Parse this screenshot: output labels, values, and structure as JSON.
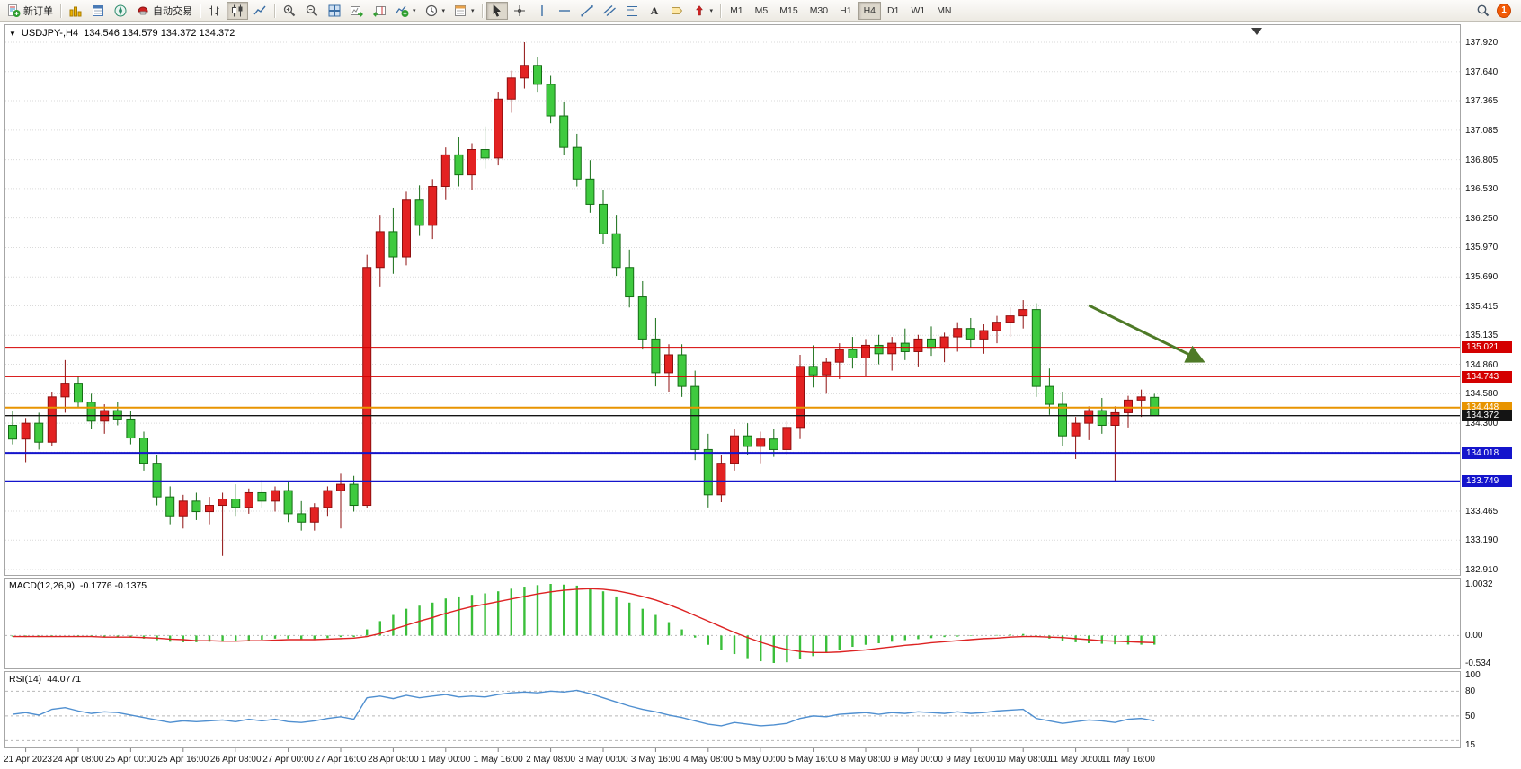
{
  "toolbar": {
    "new_order_label": "新订单",
    "autotrading_label": "自动交易",
    "timeframes": [
      "M1",
      "M5",
      "M15",
      "M30",
      "H1",
      "H4",
      "D1",
      "W1",
      "MN"
    ],
    "active_timeframe": "H4",
    "notification_count": "1"
  },
  "chart": {
    "collapse_arrow": "▼",
    "title": "USDJPY-,H4",
    "ohlc": "134.546 134.579 134.372 134.372"
  },
  "chart_data": {
    "type": "candlestick",
    "symbol": "USDJPY-",
    "timeframe": "H4",
    "price_axis_labels": [
      "137.920",
      "137.640",
      "137.365",
      "137.085",
      "136.805",
      "136.530",
      "136.250",
      "135.970",
      "135.690",
      "135.415",
      "135.135",
      "134.860",
      "134.580",
      "134.300",
      "134.025",
      "133.745",
      "133.465",
      "133.190",
      "132.910"
    ],
    "time_axis_labels": [
      "21 Apr 2023",
      "24 Apr 08:00",
      "25 Apr 00:00",
      "25 Apr 16:00",
      "26 Apr 08:00",
      "27 Apr 00:00",
      "27 Apr 16:00",
      "28 Apr 08:00",
      "1 May 00:00",
      "1 May 16:00",
      "2 May 08:00",
      "3 May 00:00",
      "3 May 16:00",
      "4 May 08:00",
      "5 May 00:00",
      "5 May 16:00",
      "8 May 08:00",
      "9 May 00:00",
      "9 May 16:00",
      "10 May 08:00",
      "11 May 00:00",
      "11 May 16:00"
    ],
    "colors": {
      "up": "#e32222",
      "up_border": "#8f0f0f",
      "down": "#3fca3f",
      "down_border": "#156d15",
      "macd_histogram": "#3bbf3b",
      "macd_signal": "#dd2222",
      "rsi_line": "#4f8fd0",
      "current_line": "#141414"
    },
    "candles": [
      [
        134.28,
        134.42,
        134.1,
        134.15
      ],
      [
        134.15,
        134.35,
        133.93,
        134.3
      ],
      [
        134.3,
        134.4,
        134.05,
        134.12
      ],
      [
        134.12,
        134.6,
        134.08,
        134.55
      ],
      [
        134.55,
        134.9,
        134.4,
        134.68
      ],
      [
        134.68,
        134.75,
        134.45,
        134.5
      ],
      [
        134.5,
        134.58,
        134.25,
        134.32
      ],
      [
        134.32,
        134.48,
        134.2,
        134.42
      ],
      [
        134.42,
        134.5,
        134.28,
        134.34
      ],
      [
        134.34,
        134.42,
        134.1,
        134.16
      ],
      [
        134.16,
        134.22,
        133.85,
        133.92
      ],
      [
        133.92,
        134.0,
        133.52,
        133.6
      ],
      [
        133.6,
        133.7,
        133.34,
        133.42
      ],
      [
        133.42,
        133.62,
        133.3,
        133.56
      ],
      [
        133.56,
        133.64,
        133.38,
        133.46
      ],
      [
        133.46,
        133.6,
        133.34,
        133.52
      ],
      [
        133.52,
        133.64,
        133.04,
        133.58
      ],
      [
        133.58,
        133.72,
        133.42,
        133.5
      ],
      [
        133.5,
        133.68,
        133.44,
        133.64
      ],
      [
        133.64,
        133.76,
        133.5,
        133.56
      ],
      [
        133.56,
        133.7,
        133.46,
        133.66
      ],
      [
        133.66,
        133.74,
        133.36,
        133.44
      ],
      [
        133.44,
        133.56,
        133.28,
        133.36
      ],
      [
        133.36,
        133.54,
        133.28,
        133.5
      ],
      [
        133.5,
        133.7,
        133.42,
        133.66
      ],
      [
        133.66,
        133.82,
        133.3,
        133.72
      ],
      [
        133.72,
        133.8,
        133.46,
        133.52
      ],
      [
        133.52,
        135.9,
        133.49,
        135.78
      ],
      [
        135.78,
        136.28,
        135.6,
        136.12
      ],
      [
        136.12,
        136.35,
        135.72,
        135.88
      ],
      [
        135.88,
        136.5,
        135.8,
        136.42
      ],
      [
        136.42,
        136.56,
        136.08,
        136.18
      ],
      [
        136.18,
        136.62,
        136.05,
        136.55
      ],
      [
        136.55,
        136.92,
        136.42,
        136.85
      ],
      [
        136.85,
        137.02,
        136.55,
        136.66
      ],
      [
        136.66,
        136.96,
        136.52,
        136.9
      ],
      [
        136.9,
        137.12,
        136.72,
        136.82
      ],
      [
        136.82,
        137.45,
        136.75,
        137.38
      ],
      [
        137.38,
        137.65,
        137.25,
        137.58
      ],
      [
        137.58,
        137.92,
        137.48,
        137.7
      ],
      [
        137.7,
        137.78,
        137.45,
        137.52
      ],
      [
        137.52,
        137.6,
        137.15,
        137.22
      ],
      [
        137.22,
        137.35,
        136.85,
        136.92
      ],
      [
        136.92,
        137.05,
        136.55,
        136.62
      ],
      [
        136.62,
        136.8,
        136.3,
        136.38
      ],
      [
        136.38,
        136.52,
        136.0,
        136.1
      ],
      [
        136.1,
        136.28,
        135.7,
        135.78
      ],
      [
        135.78,
        135.95,
        135.4,
        135.5
      ],
      [
        135.5,
        135.65,
        135.0,
        135.1
      ],
      [
        135.1,
        135.3,
        134.65,
        134.78
      ],
      [
        134.78,
        135.05,
        134.6,
        134.95
      ],
      [
        134.95,
        135.05,
        134.55,
        134.65
      ],
      [
        134.65,
        134.8,
        133.95,
        134.05
      ],
      [
        134.05,
        134.2,
        133.5,
        133.62
      ],
      [
        133.62,
        134.0,
        133.55,
        133.92
      ],
      [
        133.92,
        134.25,
        133.85,
        134.18
      ],
      [
        134.18,
        134.3,
        134.0,
        134.08
      ],
      [
        134.08,
        134.22,
        133.92,
        134.15
      ],
      [
        134.15,
        134.25,
        133.98,
        134.05
      ],
      [
        134.05,
        134.32,
        134.0,
        134.26
      ],
      [
        134.26,
        134.95,
        134.15,
        134.84
      ],
      [
        134.84,
        135.04,
        134.64,
        134.76
      ],
      [
        134.76,
        134.92,
        134.58,
        134.88
      ],
      [
        134.88,
        135.06,
        134.72,
        135.0
      ],
      [
        135.0,
        135.12,
        134.82,
        134.92
      ],
      [
        134.92,
        135.1,
        134.75,
        135.04
      ],
      [
        135.04,
        135.14,
        134.86,
        134.96
      ],
      [
        134.96,
        135.12,
        134.8,
        135.06
      ],
      [
        135.06,
        135.2,
        134.9,
        134.98
      ],
      [
        134.98,
        135.14,
        134.84,
        135.1
      ],
      [
        135.1,
        135.22,
        134.94,
        135.02
      ],
      [
        135.02,
        135.16,
        134.88,
        135.12
      ],
      [
        135.12,
        135.26,
        134.98,
        135.2
      ],
      [
        135.2,
        135.3,
        135.02,
        135.1
      ],
      [
        135.1,
        135.24,
        134.96,
        135.18
      ],
      [
        135.18,
        135.32,
        135.06,
        135.26
      ],
      [
        135.26,
        135.4,
        135.12,
        135.32
      ],
      [
        135.32,
        135.47,
        135.2,
        135.38
      ],
      [
        135.38,
        135.44,
        134.55,
        134.65
      ],
      [
        134.65,
        134.82,
        134.38,
        134.48
      ],
      [
        134.48,
        134.6,
        134.08,
        134.18
      ],
      [
        134.18,
        134.36,
        133.96,
        134.3
      ],
      [
        134.3,
        134.46,
        134.14,
        134.42
      ],
      [
        134.42,
        134.54,
        134.2,
        134.28
      ],
      [
        134.28,
        134.46,
        133.75,
        134.4
      ],
      [
        134.4,
        134.56,
        134.26,
        134.52
      ],
      [
        134.52,
        134.62,
        134.36,
        134.55
      ],
      [
        134.546,
        134.579,
        134.372,
        134.372
      ]
    ],
    "hlines": [
      {
        "price": 135.021,
        "label": "135.021",
        "color": "#d40000",
        "width": 1
      },
      {
        "price": 134.743,
        "label": "134.743",
        "color": "#d40000",
        "width": 1.2
      },
      {
        "price": 134.448,
        "label": "134.448",
        "color": "#e89400",
        "width": 2
      },
      {
        "price": 134.018,
        "label": "134.018",
        "color": "#1414cc",
        "width": 2
      },
      {
        "price": 133.749,
        "label": "133.749",
        "color": "#1414cc",
        "width": 2
      }
    ],
    "current_price": 134.372,
    "current_price_label": "134.372",
    "annotation_arrow": {
      "from_bar": 82,
      "from_price": 135.42,
      "to_bar": 90.5,
      "to_price": 134.9,
      "color": "#4e7a27"
    },
    "macd": {
      "label": "MACD(12,26,9)",
      "values_text": "-0.1776 -0.1375",
      "max": 1.0032,
      "min": -0.534,
      "axis_labels": [
        "1.0032",
        "0.00",
        "-0.534"
      ],
      "histogram": [
        -0.02,
        -0.03,
        -0.03,
        -0.01,
        0.0,
        -0.01,
        -0.02,
        -0.03,
        -0.03,
        -0.04,
        -0.06,
        -0.09,
        -0.12,
        -0.13,
        -0.13,
        -0.12,
        -0.12,
        -0.11,
        -0.09,
        -0.08,
        -0.06,
        -0.06,
        -0.07,
        -0.07,
        -0.05,
        -0.03,
        -0.03,
        0.12,
        0.28,
        0.4,
        0.52,
        0.58,
        0.64,
        0.72,
        0.76,
        0.79,
        0.82,
        0.86,
        0.91,
        0.95,
        0.98,
        1.0032,
        0.99,
        0.97,
        0.93,
        0.86,
        0.76,
        0.64,
        0.52,
        0.4,
        0.26,
        0.12,
        -0.04,
        -0.18,
        -0.28,
        -0.36,
        -0.44,
        -0.5,
        -0.534,
        -0.52,
        -0.46,
        -0.4,
        -0.34,
        -0.28,
        -0.22,
        -0.18,
        -0.15,
        -0.12,
        -0.09,
        -0.07,
        -0.05,
        -0.03,
        -0.02,
        -0.01,
        0.0,
        0.01,
        0.02,
        0.03,
        -0.02,
        -0.06,
        -0.1,
        -0.13,
        -0.15,
        -0.16,
        -0.17,
        -0.175,
        -0.178,
        -0.1776
      ],
      "signal": [
        -0.02,
        -0.02,
        -0.02,
        -0.02,
        -0.02,
        -0.02,
        -0.02,
        -0.03,
        -0.03,
        -0.03,
        -0.04,
        -0.05,
        -0.07,
        -0.08,
        -0.1,
        -0.1,
        -0.11,
        -0.11,
        -0.1,
        -0.1,
        -0.09,
        -0.08,
        -0.08,
        -0.08,
        -0.07,
        -0.06,
        -0.05,
        -0.02,
        0.04,
        0.12,
        0.2,
        0.28,
        0.35,
        0.43,
        0.5,
        0.56,
        0.61,
        0.66,
        0.71,
        0.76,
        0.81,
        0.85,
        0.88,
        0.9,
        0.91,
        0.9,
        0.87,
        0.82,
        0.76,
        0.69,
        0.6,
        0.5,
        0.39,
        0.28,
        0.17,
        0.06,
        -0.04,
        -0.13,
        -0.21,
        -0.27,
        -0.31,
        -0.33,
        -0.33,
        -0.32,
        -0.3,
        -0.28,
        -0.25,
        -0.22,
        -0.19,
        -0.17,
        -0.14,
        -0.12,
        -0.1,
        -0.08,
        -0.06,
        -0.05,
        -0.03,
        -0.02,
        -0.02,
        -0.03,
        -0.04,
        -0.06,
        -0.08,
        -0.1,
        -0.11,
        -0.12,
        -0.13,
        -0.1375
      ]
    },
    "rsi": {
      "label": "RSI(14)",
      "value_text": "44.0771",
      "levels": [
        80,
        50,
        20
      ],
      "axis_labels": [
        "100",
        "80",
        "50",
        "15"
      ],
      "values": [
        52,
        54,
        51,
        58,
        60,
        56,
        53,
        55,
        54,
        51,
        48,
        45,
        42,
        44,
        43,
        44,
        45,
        43,
        46,
        44,
        46,
        43,
        42,
        44,
        47,
        49,
        46,
        72,
        74,
        71,
        75,
        72,
        74,
        76,
        73,
        74,
        73,
        76,
        78,
        79,
        78,
        80,
        79,
        81,
        77,
        72,
        67,
        62,
        58,
        55,
        51,
        48,
        44,
        40,
        38,
        42,
        40,
        38,
        39,
        41,
        47,
        50,
        49,
        52,
        53,
        54,
        52,
        54,
        53,
        55,
        54,
        53,
        55,
        53,
        54,
        56,
        57,
        58,
        47,
        44,
        41,
        43,
        45,
        44,
        42,
        46,
        47,
        44.0771
      ]
    }
  }
}
